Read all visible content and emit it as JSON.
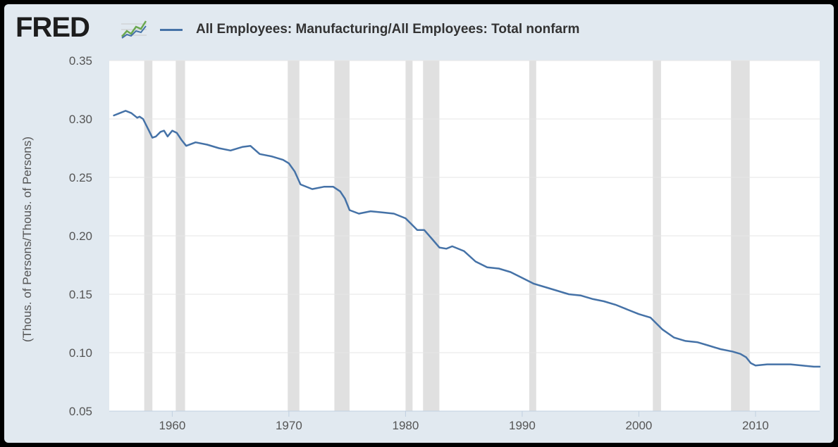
{
  "header": {
    "logo_text": "FRED",
    "legend_label": "All Employees: Manufacturing/All Employees: Total nonfarm"
  },
  "colors": {
    "series": "#4572a7",
    "recession": "#e0e0e0",
    "plot_bg": "#ffffff",
    "grid": "#e6e6e6",
    "frame_bg": "#e1e9f0"
  },
  "chart_data": {
    "type": "line",
    "title": "",
    "xlabel": "",
    "ylabel": "(Thous. of Persons/Thous. of Persons)",
    "xlim": [
      1954.6,
      2015.5
    ],
    "ylim": [
      0.05,
      0.35
    ],
    "yticks": [
      0.05,
      0.1,
      0.15,
      0.2,
      0.25,
      0.3,
      0.35
    ],
    "ytick_labels": [
      "0.05",
      "0.10",
      "0.15",
      "0.20",
      "0.25",
      "0.30",
      "0.35"
    ],
    "xticks": [
      1960,
      1970,
      1980,
      1990,
      2000,
      2010
    ],
    "xtick_labels": [
      "1960",
      "1970",
      "1980",
      "1990",
      "2000",
      "2010"
    ],
    "grid": true,
    "legend": "top-left",
    "recessions": [
      [
        1957.6,
        1958.3
      ],
      [
        1960.3,
        1961.1
      ],
      [
        1969.9,
        1970.9
      ],
      [
        1973.9,
        1975.2
      ],
      [
        1980.0,
        1980.6
      ],
      [
        1981.5,
        1982.9
      ],
      [
        1990.6,
        1991.2
      ],
      [
        2001.2,
        2001.9
      ],
      [
        2007.9,
        2009.5
      ]
    ],
    "series": [
      {
        "name": "All Employees: Manufacturing/All Employees: Total nonfarm",
        "x": [
          1955.0,
          1955.5,
          1956.0,
          1956.5,
          1957.0,
          1957.2,
          1957.5,
          1958.0,
          1958.3,
          1958.6,
          1959.0,
          1959.3,
          1959.6,
          1960.0,
          1960.4,
          1960.8,
          1961.2,
          1962.0,
          1963.0,
          1964.0,
          1965.0,
          1966.0,
          1966.7,
          1967.5,
          1968.5,
          1969.5,
          1970.0,
          1970.5,
          1971.0,
          1972.0,
          1973.0,
          1973.8,
          1974.4,
          1974.8,
          1975.2,
          1976.0,
          1977.0,
          1978.0,
          1979.0,
          1980.0,
          1980.5,
          1981.0,
          1981.6,
          1982.3,
          1982.9,
          1983.5,
          1984.0,
          1985.0,
          1986.0,
          1987.0,
          1988.0,
          1989.0,
          1990.0,
          1991.0,
          1992.0,
          1993.0,
          1994.0,
          1995.0,
          1996.0,
          1997.0,
          1998.0,
          1999.0,
          2000.0,
          2001.0,
          2001.5,
          2002.0,
          2003.0,
          2004.0,
          2005.0,
          2006.0,
          2007.0,
          2008.0,
          2008.7,
          2009.2,
          2009.6,
          2010.0,
          2011.0,
          2012.0,
          2013.0,
          2014.0,
          2015.0,
          2015.5
        ],
        "values": [
          0.303,
          0.305,
          0.307,
          0.305,
          0.301,
          0.302,
          0.3,
          0.29,
          0.284,
          0.285,
          0.289,
          0.29,
          0.285,
          0.29,
          0.288,
          0.282,
          0.277,
          0.28,
          0.278,
          0.275,
          0.273,
          0.276,
          0.277,
          0.27,
          0.268,
          0.265,
          0.262,
          0.255,
          0.244,
          0.24,
          0.242,
          0.242,
          0.238,
          0.232,
          0.222,
          0.219,
          0.221,
          0.22,
          0.219,
          0.215,
          0.21,
          0.205,
          0.205,
          0.197,
          0.19,
          0.189,
          0.191,
          0.187,
          0.178,
          0.173,
          0.172,
          0.169,
          0.164,
          0.159,
          0.156,
          0.153,
          0.15,
          0.149,
          0.146,
          0.144,
          0.141,
          0.137,
          0.133,
          0.13,
          0.125,
          0.12,
          0.113,
          0.11,
          0.109,
          0.106,
          0.103,
          0.101,
          0.099,
          0.096,
          0.091,
          0.089,
          0.09,
          0.09,
          0.09,
          0.089,
          0.088,
          0.088
        ]
      }
    ]
  }
}
